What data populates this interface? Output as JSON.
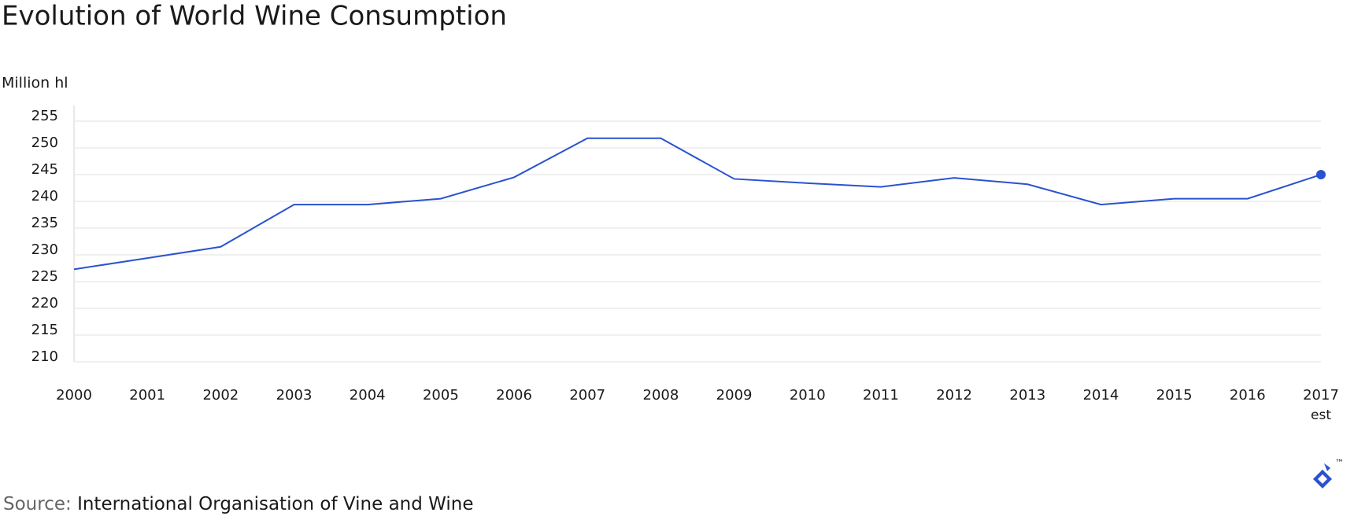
{
  "chart_data": {
    "type": "line",
    "title": "Evolution of World Wine Consumption",
    "y_axis_label": "Million hl",
    "categories": [
      "2000",
      "2001",
      "2002",
      "2003",
      "2004",
      "2005",
      "2006",
      "2007",
      "2008",
      "2009",
      "2010",
      "2011",
      "2012",
      "2013",
      "2014",
      "2015",
      "2016",
      "2017"
    ],
    "last_category_note": "est",
    "series": [
      {
        "name": "World wine consumption",
        "color": "#2a52d0",
        "values": [
          227.3,
          229.4,
          231.5,
          239.4,
          239.4,
          240.5,
          244.5,
          251.8,
          251.8,
          244.2,
          243.4,
          242.7,
          244.4,
          243.2,
          239.4,
          240.5,
          240.5,
          245.0
        ]
      }
    ],
    "ylim": [
      210,
      255
    ],
    "yticks": [
      210,
      215,
      220,
      225,
      230,
      235,
      240,
      245,
      250,
      255
    ],
    "grid": true,
    "source_label": "Source:",
    "source": "International Organisation of Vine and Wine",
    "logo_tm": "™"
  }
}
